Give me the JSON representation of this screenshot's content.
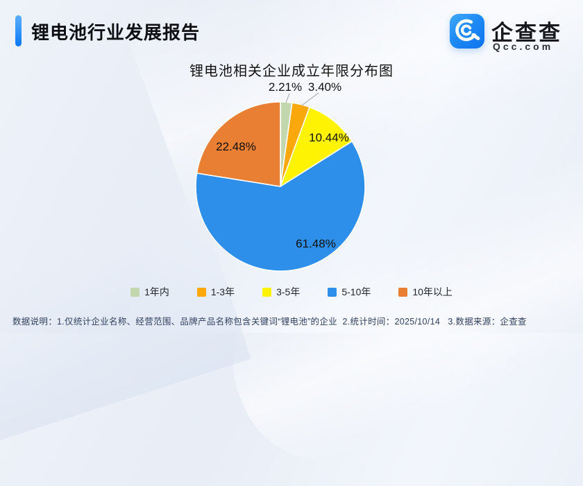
{
  "header": {
    "title": "锂电池行业发展报告",
    "logo": {
      "name": "企查查",
      "domain": "Qcc.com"
    }
  },
  "chart_data": {
    "type": "pie",
    "title": "锂电池相关企业成立年限分布图",
    "unit": "percent",
    "start_angle": "top",
    "direction": "clockwise",
    "legend_position": "bottom",
    "series": [
      {
        "label": "1年内",
        "value": 2.21,
        "display": "2.21%",
        "color": "#c2d7ad"
      },
      {
        "label": "1-3年",
        "value": 3.4,
        "display": "3.40%",
        "color": "#fba80d"
      },
      {
        "label": "3-5年",
        "value": 10.44,
        "display": "10.44%",
        "color": "#fdf303"
      },
      {
        "label": "5-10年",
        "value": 61.48,
        "display": "61.48%",
        "color": "#2d8fe9"
      },
      {
        "label": "10年以上",
        "value": 22.48,
        "display": "22.48%",
        "color": "#e87f33"
      }
    ]
  },
  "footer": {
    "note": "数据说明：1.仅统计企业名称、经营范围、品牌产品名称包含关键词“锂电池”的企业  2.统计时间：2025/10/14   3.数据来源：企查查"
  }
}
